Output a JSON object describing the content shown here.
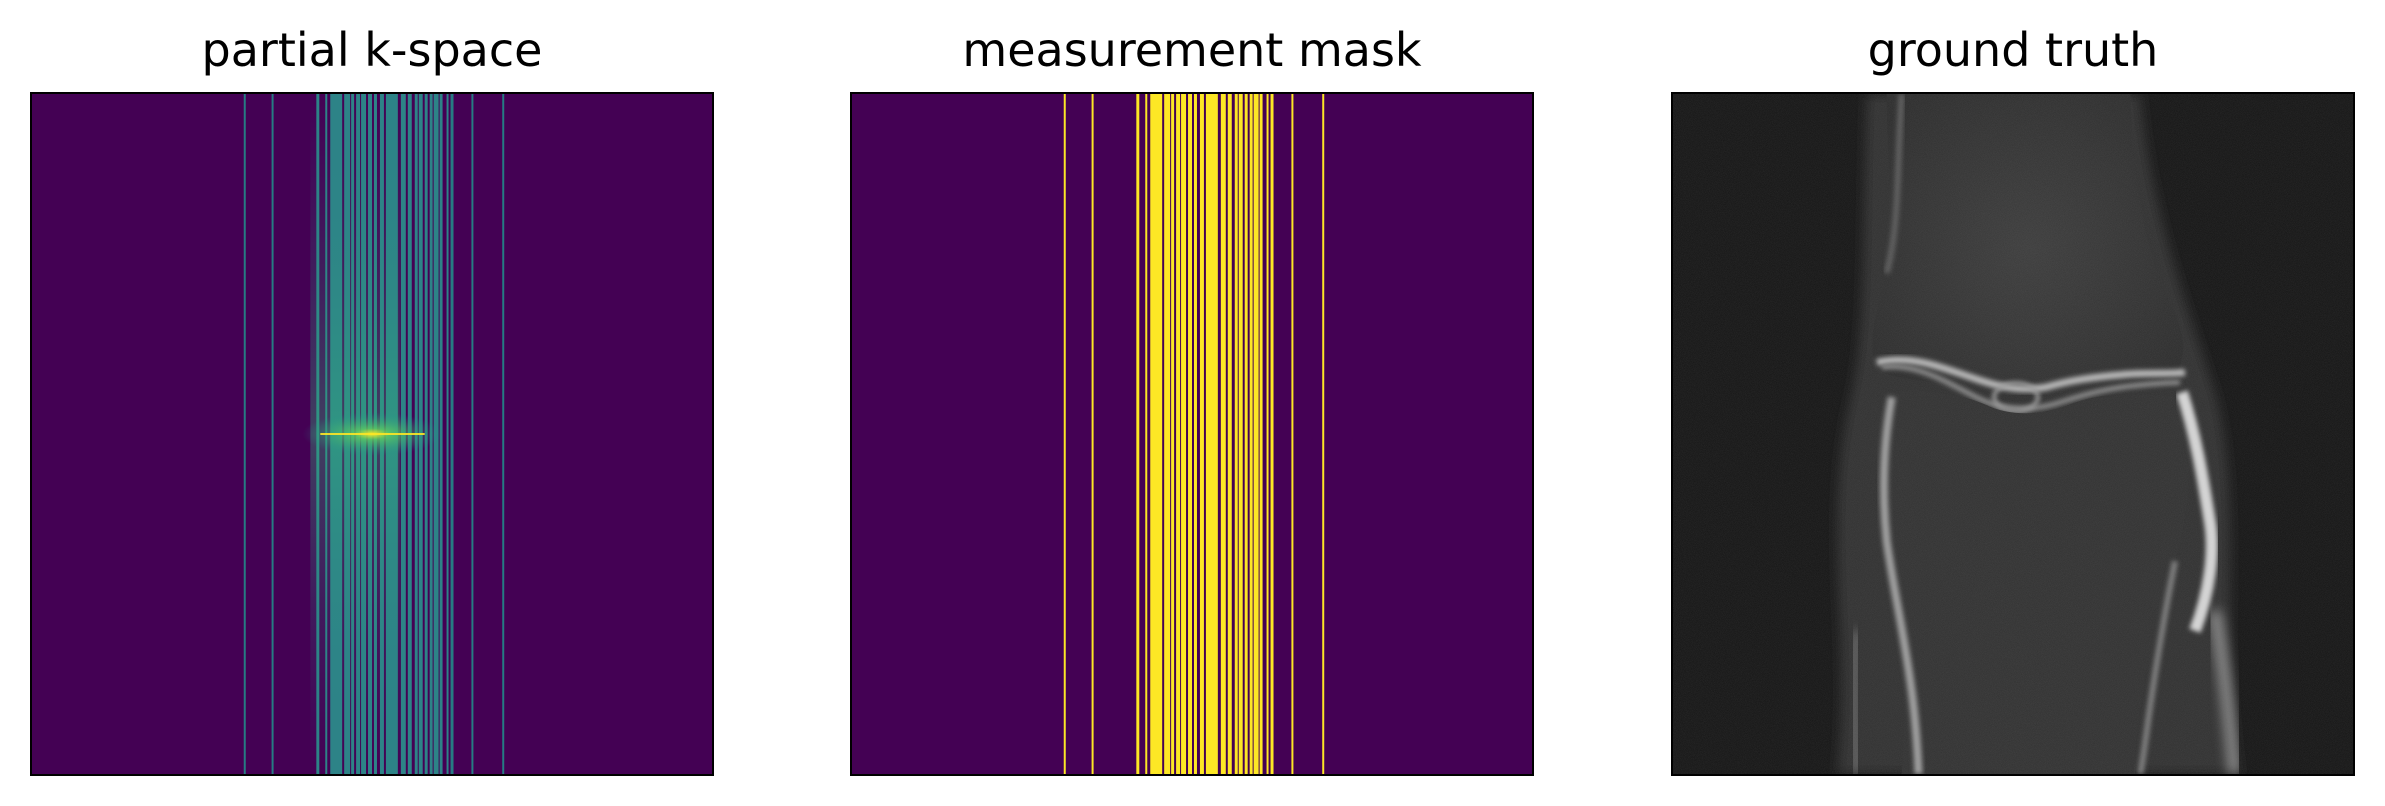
{
  "panels": {
    "kspace": {
      "title": "partial k-space"
    },
    "mask": {
      "title": "measurement mask"
    },
    "truth": {
      "title": "ground truth"
    }
  },
  "colors": {
    "viridis_low": "#440154",
    "viridis_mid": "#21918c",
    "viridis_high": "#fde725",
    "viridis_green": "#5ec962",
    "gray_background": "#121212",
    "border": "#000000"
  }
}
